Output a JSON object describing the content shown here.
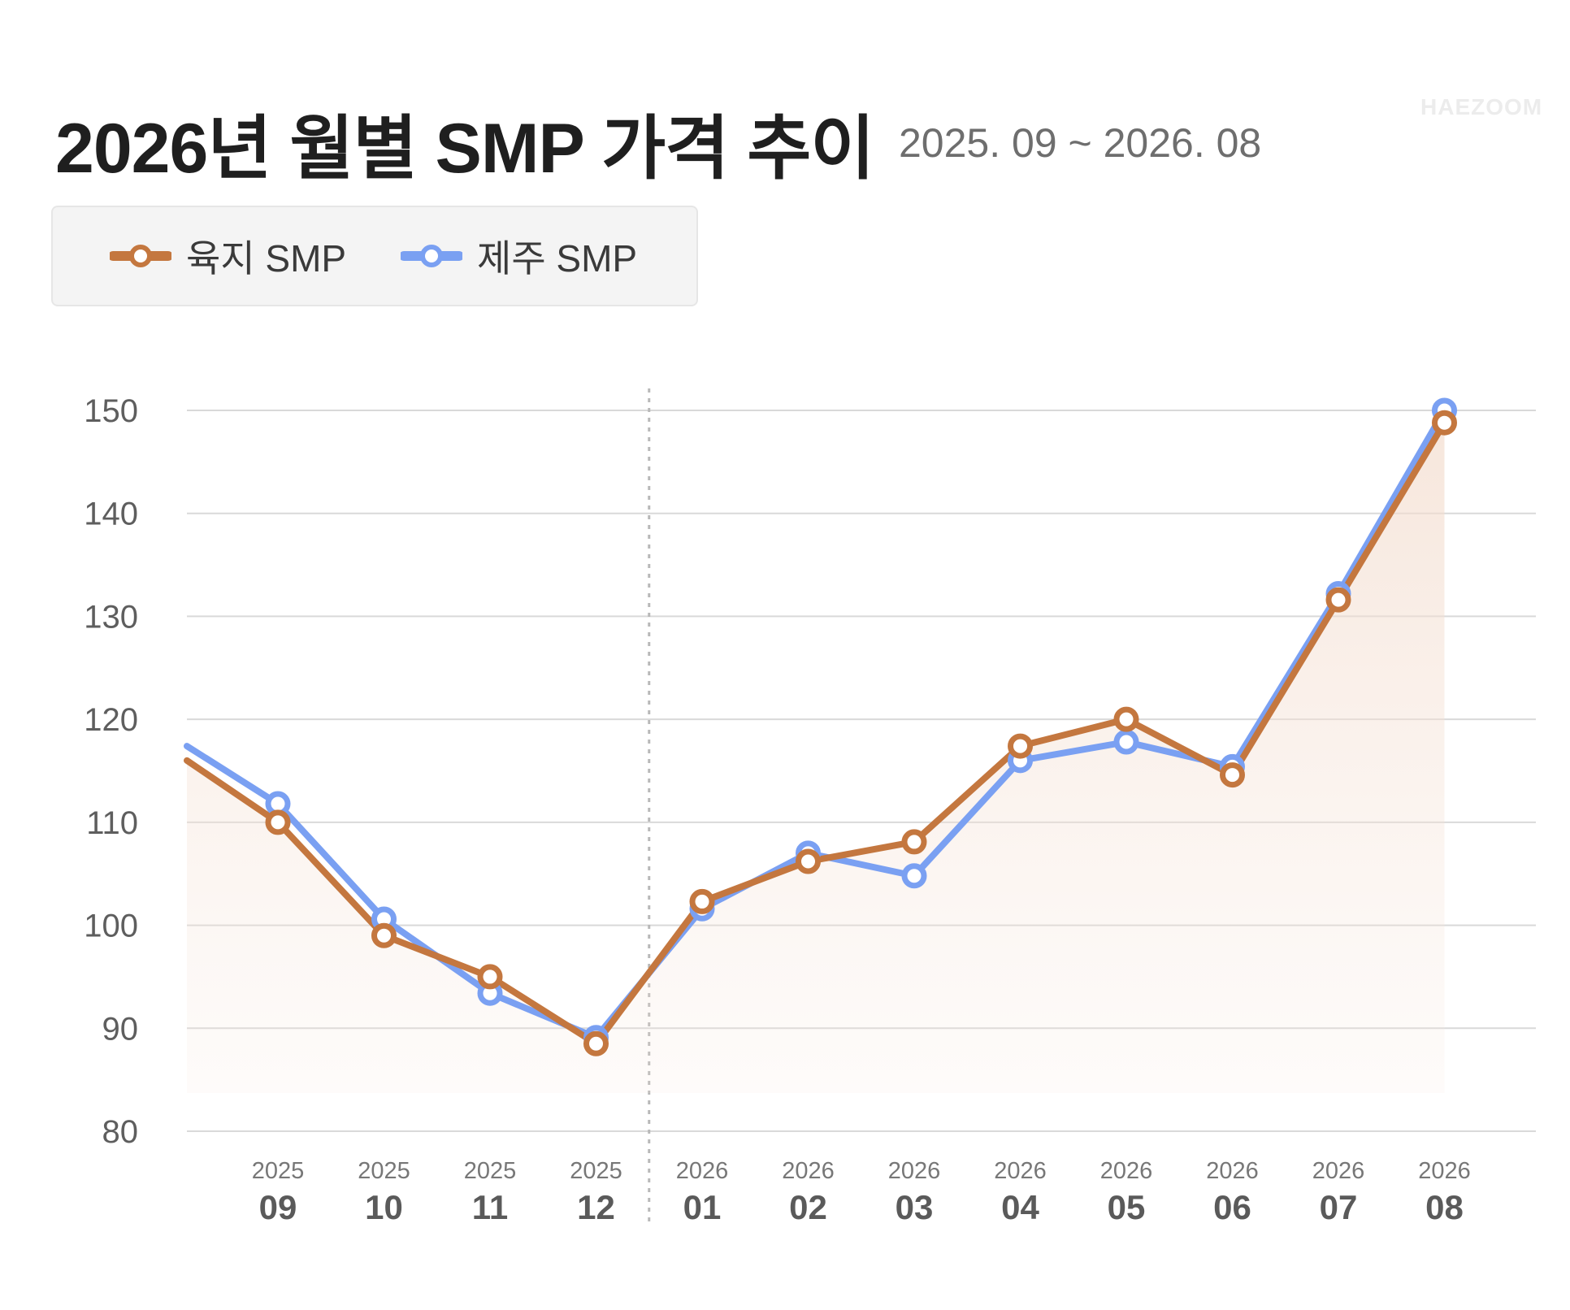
{
  "header": {
    "title": "2026년 월별 SMP 가격 추이",
    "subtitle": "2025. 09 ~ 2026. 08",
    "brand": "HAEZOOM"
  },
  "legend": {
    "items": [
      {
        "label": "육지 SMP",
        "color": "#c4773f"
      },
      {
        "label": "제주 SMP",
        "color": "#7aa0f2"
      }
    ]
  },
  "chart_data": {
    "type": "line",
    "title": "2026년 월별 SMP 가격 추이",
    "subtitle": "2025. 09 ~ 2026. 08",
    "categories": [
      {
        "year": "2025",
        "month": "09"
      },
      {
        "year": "2025",
        "month": "10"
      },
      {
        "year": "2025",
        "month": "11"
      },
      {
        "year": "2025",
        "month": "12"
      },
      {
        "year": "2026",
        "month": "01"
      },
      {
        "year": "2026",
        "month": "02"
      },
      {
        "year": "2026",
        "month": "03"
      },
      {
        "year": "2026",
        "month": "04"
      },
      {
        "year": "2026",
        "month": "05"
      },
      {
        "year": "2026",
        "month": "06"
      },
      {
        "year": "2026",
        "month": "07"
      },
      {
        "year": "2026",
        "month": "08"
      }
    ],
    "series": [
      {
        "name": "육지 SMP",
        "color": "#c4773f",
        "area_fill": true,
        "left_edge_value": 116,
        "values": [
          110,
          99,
          95,
          88.5,
          102.3,
          106.2,
          108.1,
          117.4,
          120,
          114.6,
          131.6,
          148.8
        ]
      },
      {
        "name": "제주 SMP",
        "color": "#7aa0f2",
        "area_fill": false,
        "left_edge_value": 117.4,
        "values": [
          111.8,
          100.6,
          93.4,
          89.1,
          101.6,
          107,
          104.8,
          116,
          117.8,
          115.4,
          132.2,
          150
        ]
      }
    ],
    "yticks": [
      80,
      90,
      100,
      110,
      120,
      130,
      140,
      150
    ],
    "ylim": [
      80,
      150
    ],
    "grid": "horizontal",
    "year_divider": "between 2025/12 and 2026/01",
    "legend_position": "top-left"
  }
}
